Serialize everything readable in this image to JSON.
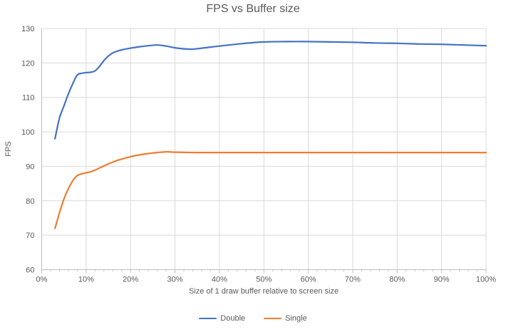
{
  "title": "FPS vs Buffer size",
  "colors": {
    "double_series": "#4472C4",
    "single_series": "#ED7D31",
    "gridline": "#D9D9D9",
    "axis_line": "#BFBFBF",
    "text": "#595959",
    "background": "#FFFFFF"
  },
  "chart_data": {
    "type": "line",
    "title": "FPS vs Buffer size",
    "xlabel": "Size of 1 draw buffer relative to screen size",
    "ylabel": "FPS",
    "xlim": [
      0,
      100
    ],
    "ylim": [
      60,
      130
    ],
    "grid": true,
    "legend_position": "bottom",
    "x_tick_values": [
      0,
      10,
      20,
      30,
      40,
      50,
      60,
      70,
      80,
      90,
      100
    ],
    "x_tick_labels": [
      "0%",
      "10%",
      "20%",
      "30%",
      "40%",
      "50%",
      "60%",
      "70%",
      "80%",
      "90%",
      "100%"
    ],
    "y_tick_values": [
      60,
      70,
      80,
      90,
      100,
      110,
      120,
      130
    ],
    "x_minor_tick_step": 2,
    "series": [
      {
        "name": "Double",
        "color": "#4472C4",
        "points": [
          [
            3,
            98
          ],
          [
            4,
            104
          ],
          [
            5,
            107.5
          ],
          [
            6,
            111
          ],
          [
            7,
            114
          ],
          [
            8,
            116.5
          ],
          [
            9,
            117
          ],
          [
            10,
            117.2
          ],
          [
            11,
            117.3
          ],
          [
            12,
            117.7
          ],
          [
            13,
            119
          ],
          [
            14,
            120.7
          ],
          [
            15,
            122
          ],
          [
            16,
            122.9
          ],
          [
            17,
            123.4
          ],
          [
            18,
            123.8
          ],
          [
            20,
            124.3
          ],
          [
            22,
            124.7
          ],
          [
            24,
            125
          ],
          [
            26,
            125.2
          ],
          [
            28,
            124.9
          ],
          [
            30,
            124.4
          ],
          [
            32,
            124.1
          ],
          [
            34,
            124
          ],
          [
            36,
            124.3
          ],
          [
            38,
            124.6
          ],
          [
            40,
            124.9
          ],
          [
            45,
            125.6
          ],
          [
            50,
            126.1
          ],
          [
            55,
            126.2
          ],
          [
            60,
            126.2
          ],
          [
            65,
            126.1
          ],
          [
            70,
            126
          ],
          [
            75,
            125.8
          ],
          [
            80,
            125.7
          ],
          [
            85,
            125.5
          ],
          [
            90,
            125.4
          ],
          [
            95,
            125.2
          ],
          [
            100,
            125
          ]
        ]
      },
      {
        "name": "Single",
        "color": "#ED7D31",
        "points": [
          [
            3,
            72
          ],
          [
            4,
            76.5
          ],
          [
            5,
            80.5
          ],
          [
            6,
            83.5
          ],
          [
            7,
            85.8
          ],
          [
            8,
            87.3
          ],
          [
            9,
            87.8
          ],
          [
            10,
            88.1
          ],
          [
            11,
            88.4
          ],
          [
            12,
            88.9
          ],
          [
            13,
            89.5
          ],
          [
            14,
            90.1
          ],
          [
            15,
            90.7
          ],
          [
            16,
            91.2
          ],
          [
            17,
            91.7
          ],
          [
            18,
            92.1
          ],
          [
            20,
            92.8
          ],
          [
            22,
            93.3
          ],
          [
            24,
            93.7
          ],
          [
            26,
            94
          ],
          [
            28,
            94.2
          ],
          [
            30,
            94.1
          ],
          [
            35,
            94
          ],
          [
            40,
            94
          ],
          [
            45,
            94
          ],
          [
            50,
            94
          ],
          [
            55,
            94
          ],
          [
            60,
            94
          ],
          [
            65,
            94
          ],
          [
            70,
            94
          ],
          [
            75,
            94
          ],
          [
            80,
            94
          ],
          [
            85,
            94
          ],
          [
            90,
            94
          ],
          [
            95,
            94
          ],
          [
            100,
            94
          ]
        ]
      }
    ]
  }
}
